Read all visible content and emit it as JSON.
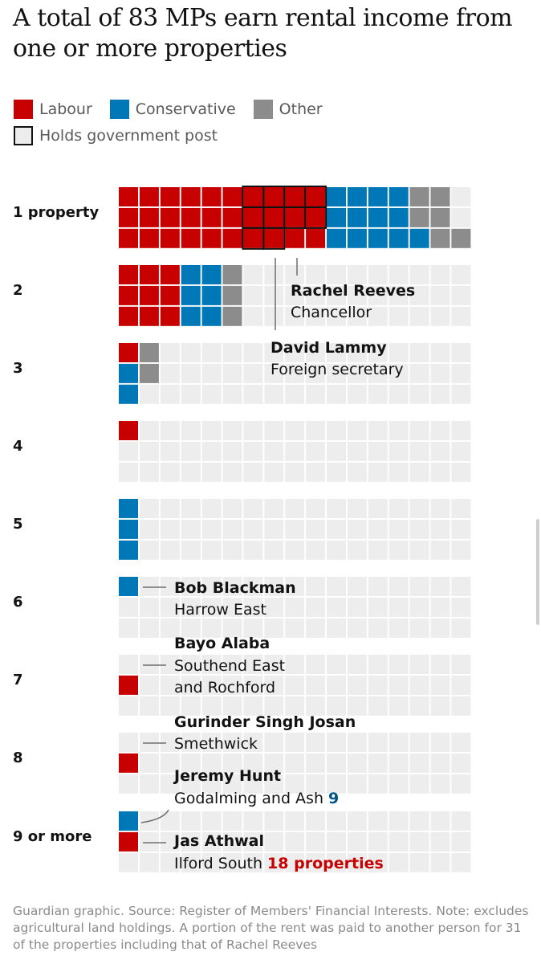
{
  "title": "A total of 83 MPs earn rental income from one or more properties",
  "legend": {
    "labour": "Labour",
    "conservative": "Conservative",
    "other": "Other",
    "gov_post": "Holds government post"
  },
  "colors": {
    "labour": "#c70000",
    "conservative": "#0077b6",
    "other": "#8c8c8c",
    "empty": "#ededed",
    "text": "#121212",
    "muted": "#5a5a5a",
    "highlight": "#c70000",
    "conservative_text": "#005689"
  },
  "chart_data": {
    "type": "waffle",
    "title": "A total of 83 MPs earn rental income from one or more properties",
    "grid": {
      "rows_per_group": 3,
      "columns": 17
    },
    "groups": [
      {
        "label": "1 property",
        "labour": 30,
        "conservative": 13,
        "other": 6,
        "government_post": 10
      },
      {
        "label": "2",
        "labour": 9,
        "conservative": 6,
        "other": 3,
        "government_post": 0
      },
      {
        "label": "3",
        "labour": 1,
        "conservative": 2,
        "other": 2,
        "government_post": 0
      },
      {
        "label": "4",
        "labour": 1,
        "conservative": 0,
        "other": 0,
        "government_post": 0
      },
      {
        "label": "5",
        "labour": 0,
        "conservative": 3,
        "other": 0,
        "government_post": 0
      },
      {
        "label": "6",
        "labour": 0,
        "conservative": 1,
        "other": 0,
        "government_post": 0
      },
      {
        "label": "7",
        "labour": 1,
        "conservative": 0,
        "other": 0,
        "government_post": 0
      },
      {
        "label": "8",
        "labour": 1,
        "conservative": 0,
        "other": 0,
        "government_post": 0
      },
      {
        "label": "9 or more",
        "labour": 1,
        "conservative": 1,
        "other": 0,
        "government_post": 0
      }
    ],
    "annotations": [
      {
        "name": "Rachel Reeves",
        "detail": "Chancellor"
      },
      {
        "name": "David Lammy",
        "detail": "Foreign secretary"
      },
      {
        "name": "Bob Blackman",
        "detail": "Harrow East"
      },
      {
        "name": "Bayo Alaba",
        "detail_lines": [
          "Southend East",
          "and Rochford"
        ]
      },
      {
        "name": "Gurinder Singh Josan",
        "detail": "Smethwick"
      },
      {
        "name": "Jeremy Hunt",
        "detail": "Godalming and Ash",
        "count": "9"
      },
      {
        "name": "Jas Athwal",
        "detail": "Ilford South",
        "count": "18 properties"
      }
    ]
  },
  "footer": "Guardian graphic. Source: Register of Members' Financial Interests. Note: excludes agricultural land holdings. A portion of the rent was paid to another person for 31 of the properties including that of Rachel Reeves"
}
